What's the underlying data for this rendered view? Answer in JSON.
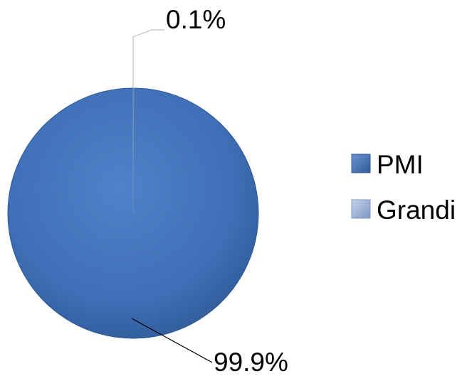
{
  "chart_data": {
    "type": "pie",
    "categories": [
      "PMI",
      "Grandi"
    ],
    "values": [
      99.9,
      0.1
    ],
    "data_labels": [
      "99.9%",
      "0.1%"
    ],
    "colors": [
      "#3f6fb6",
      "#8ea9d6"
    ],
    "legend": {
      "position": "right",
      "entries": [
        "PMI",
        "Grandi"
      ]
    }
  }
}
